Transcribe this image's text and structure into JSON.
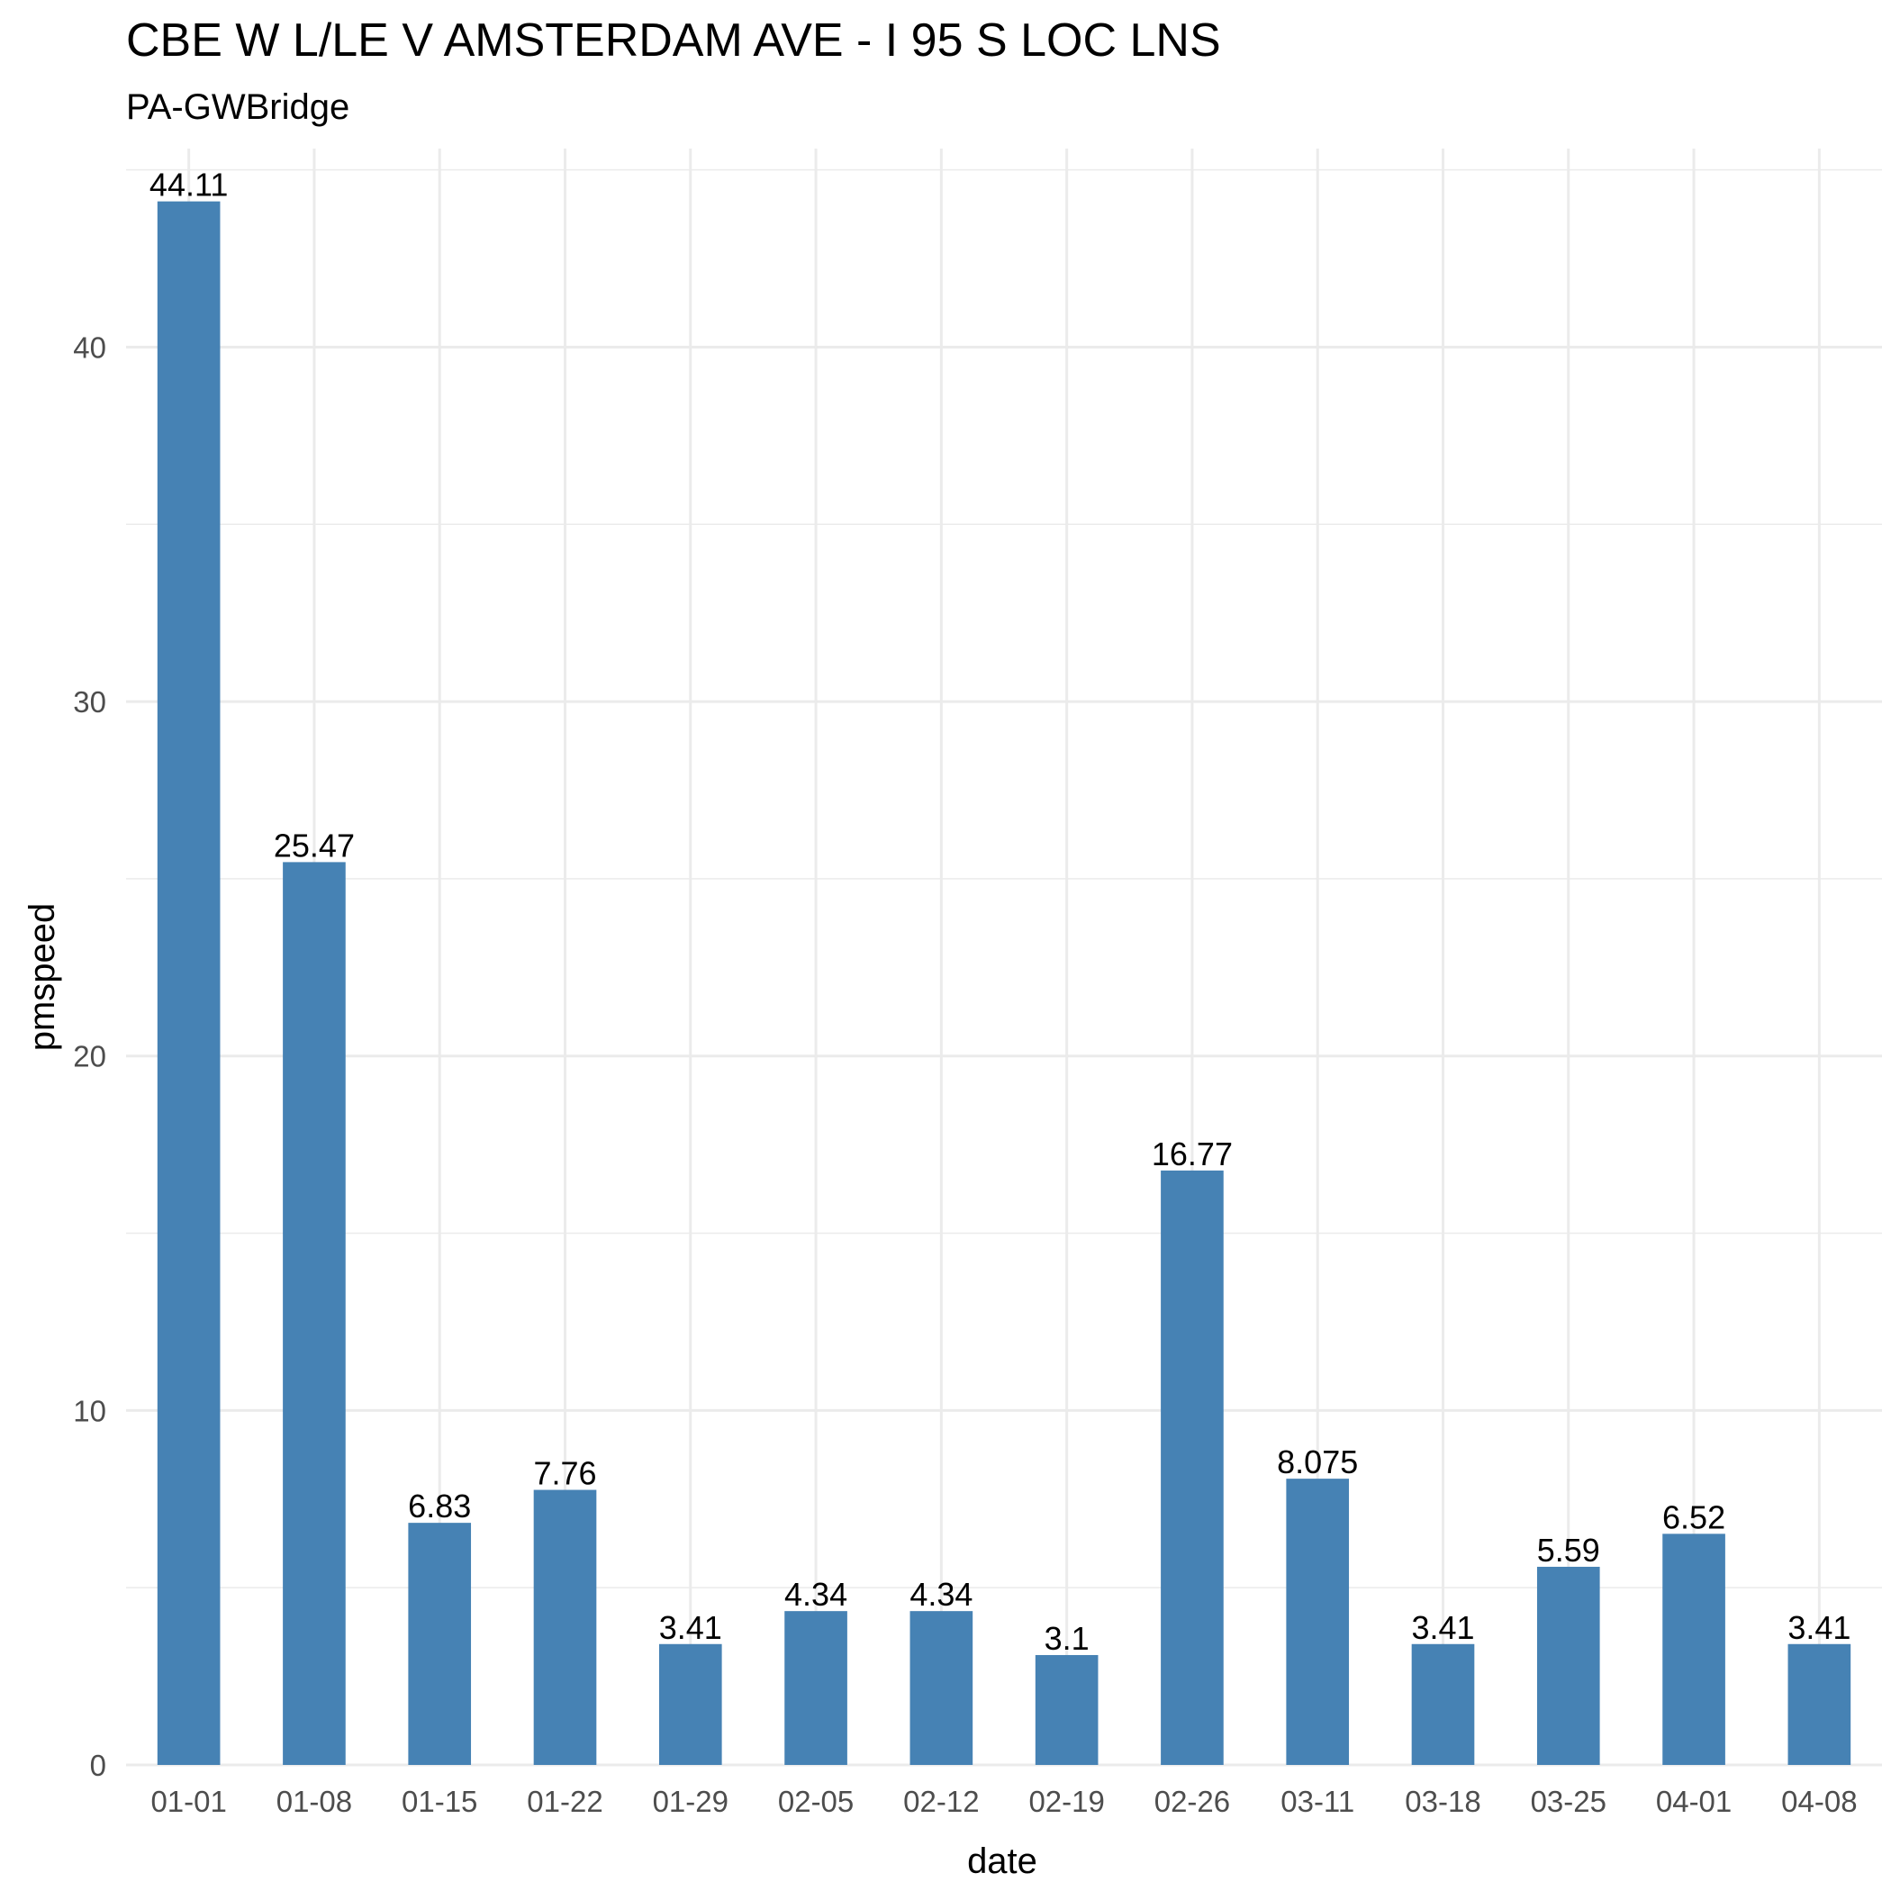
{
  "chart_data": {
    "type": "bar",
    "title": "CBE W L/LE V AMSTERDAM AVE - I 95 S LOC LNS",
    "subtitle": "PA-GWBridge",
    "xlabel": "date",
    "ylabel": "pmspeed",
    "categories": [
      "01-01",
      "01-08",
      "01-15",
      "01-22",
      "01-29",
      "02-05",
      "02-12",
      "02-19",
      "02-26",
      "03-11",
      "03-18",
      "03-25",
      "04-01",
      "04-08"
    ],
    "values": [
      44.11,
      25.47,
      6.83,
      7.76,
      3.41,
      4.34,
      4.34,
      3.1,
      16.77,
      8.075,
      3.41,
      5.59,
      6.52,
      3.41
    ],
    "data_labels": [
      "44.11",
      "25.47",
      "6.83",
      "7.76",
      "3.41",
      "4.34",
      "4.34",
      "3.1",
      "16.77",
      "8.075",
      "3.41",
      "5.59",
      "6.52",
      "3.41"
    ],
    "y_ticks": [
      0,
      10,
      20,
      30,
      40
    ],
    "y_tick_labels": [
      "0",
      "10",
      "20",
      "30",
      "40"
    ],
    "ylim": [
      0,
      45.6
    ],
    "grid": true,
    "bar_color": "#4682b4",
    "legend": "none"
  }
}
